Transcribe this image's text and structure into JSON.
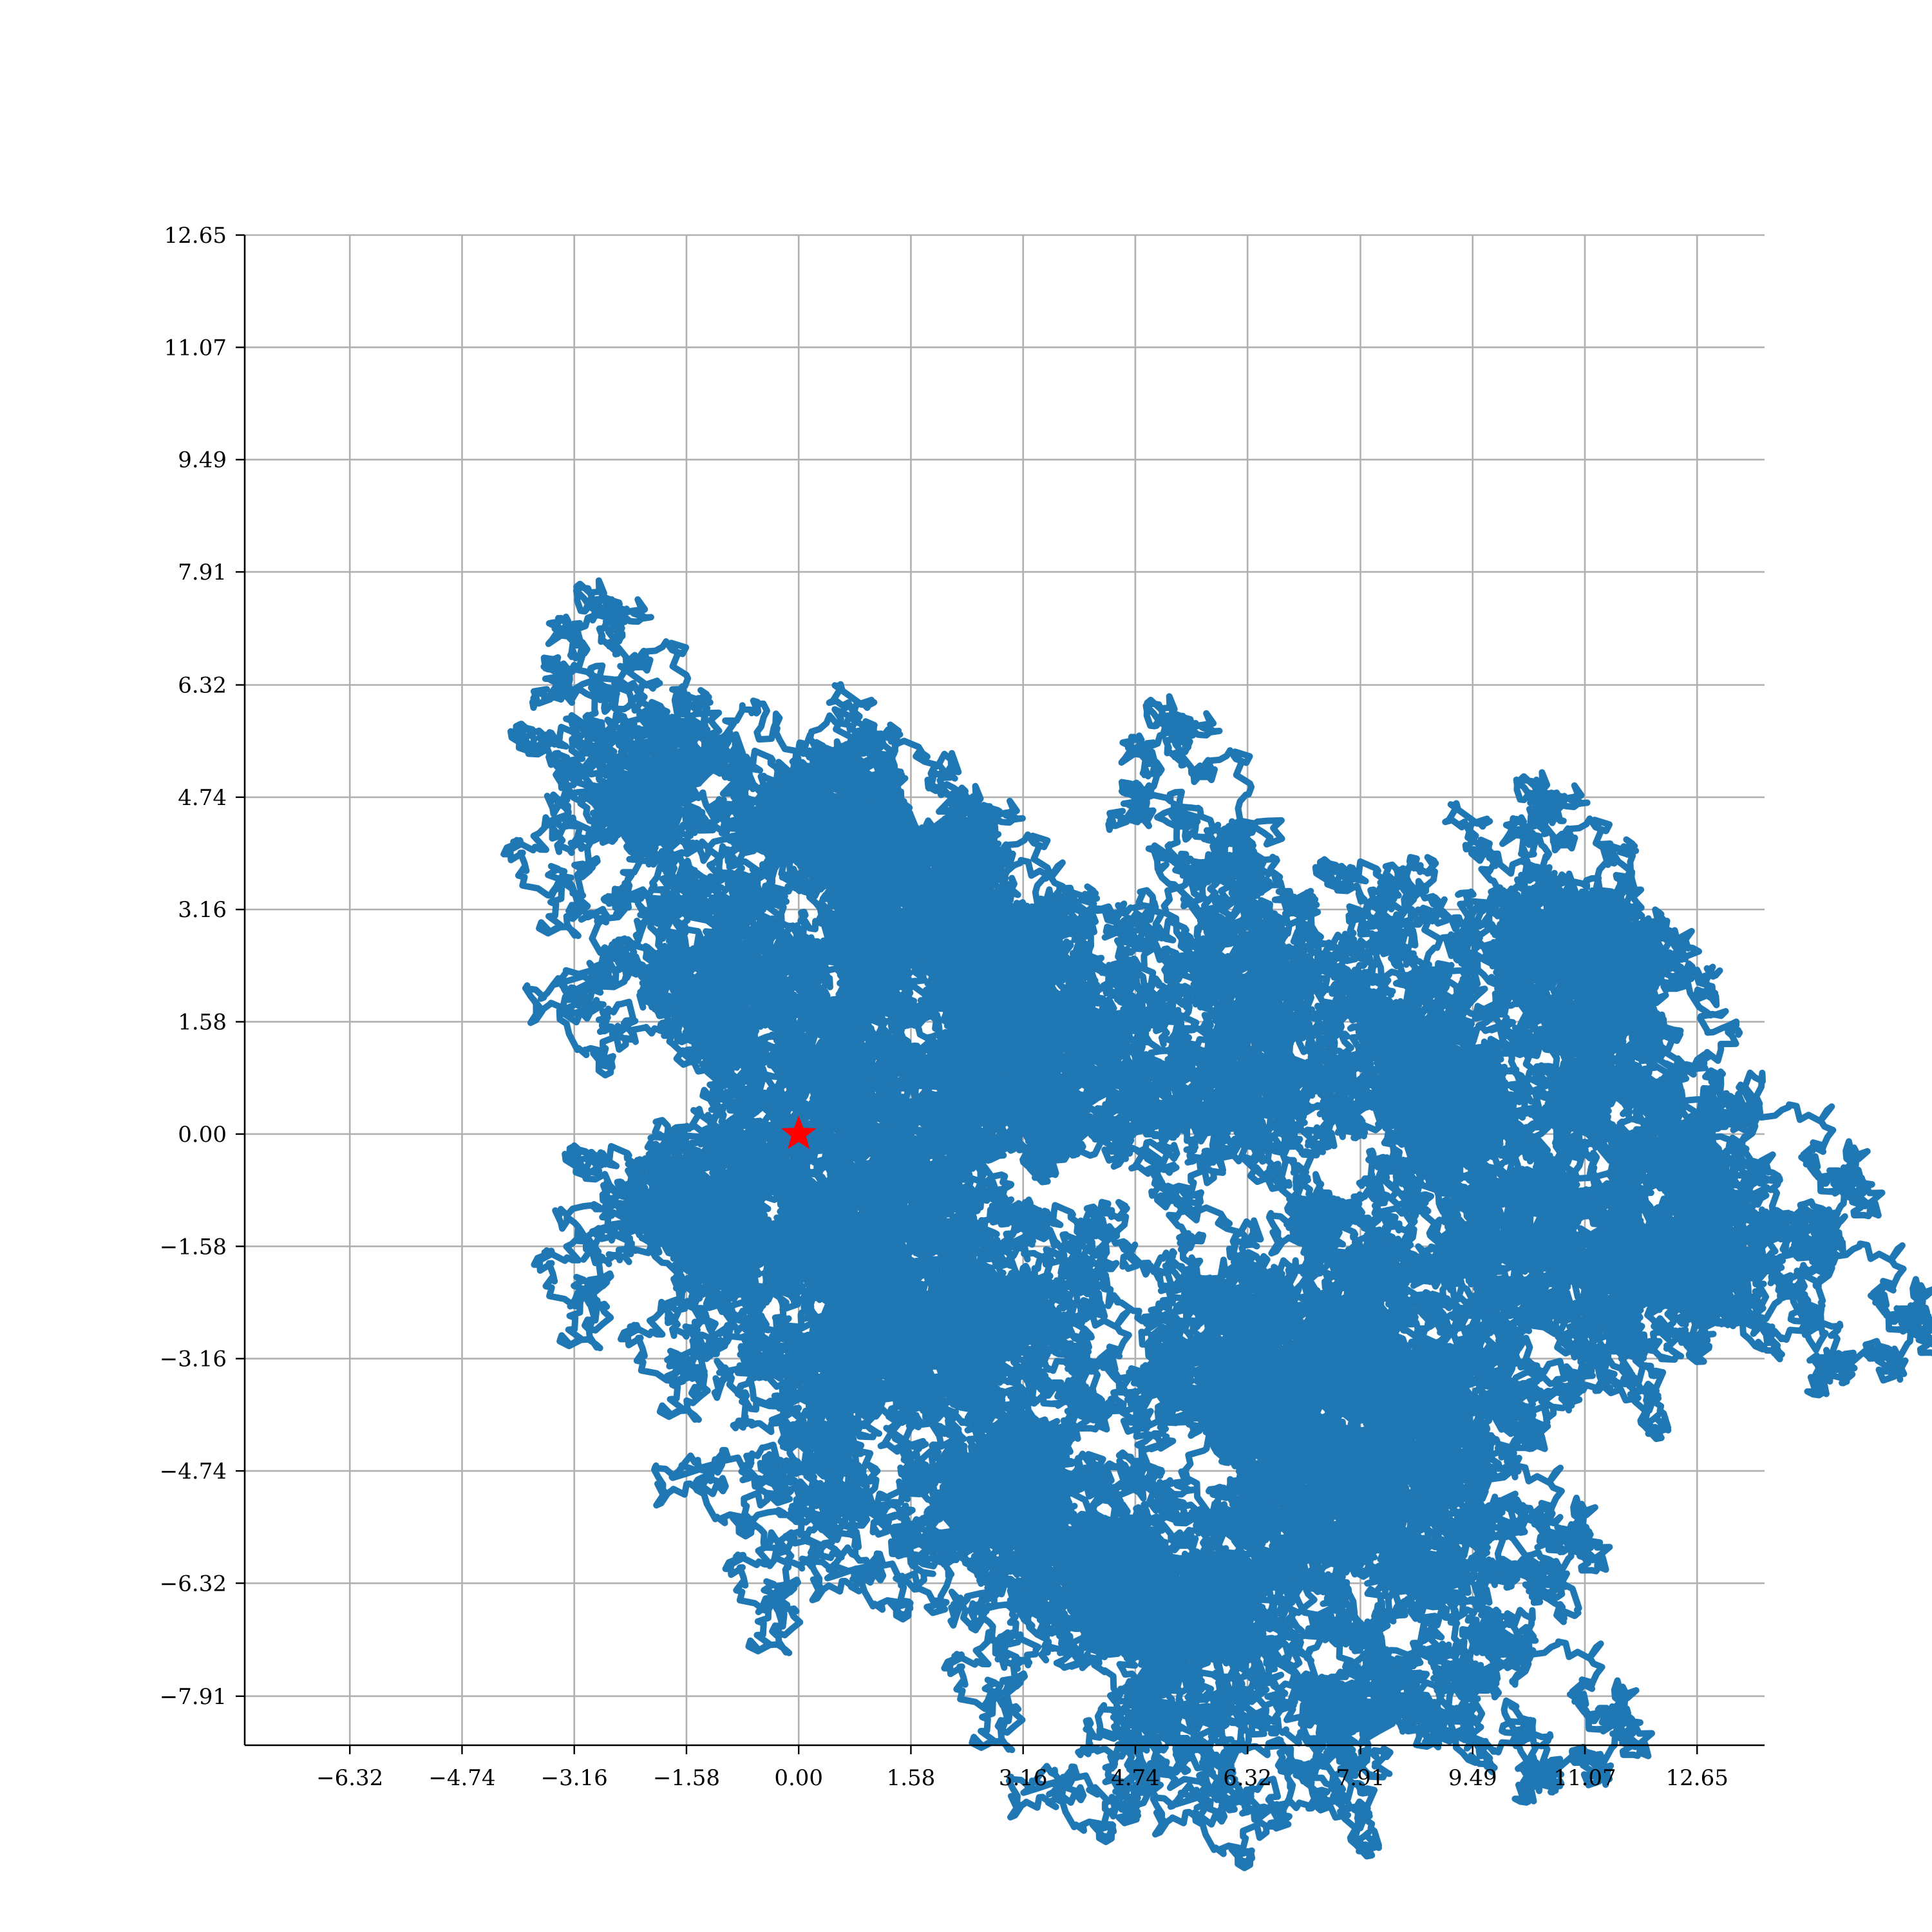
{
  "chart_data": {
    "type": "line",
    "title": "",
    "xlabel": "",
    "ylabel": "",
    "xlim": [
      -7.8,
      13.6
    ],
    "ylim": [
      -8.6,
      12.65
    ],
    "grid": true,
    "x_ticks": [
      "−6.32",
      "−4.74",
      "−3.16",
      "−1.58",
      "0.00",
      "1.58",
      "3.16",
      "4.74",
      "6.32",
      "7.91",
      "9.49",
      "11.07",
      "12.65"
    ],
    "x_tick_values": [
      -6.32,
      -4.74,
      -3.16,
      -1.58,
      0.0,
      1.58,
      3.16,
      4.74,
      6.32,
      7.91,
      9.49,
      11.07,
      12.65
    ],
    "y_ticks": [
      "12.65",
      "11.07",
      "9.49",
      "7.91",
      "6.32",
      "4.74",
      "3.16",
      "1.58",
      "0.00",
      "−1.58",
      "−3.16",
      "−4.74",
      "−6.32",
      "−7.91"
    ],
    "y_tick_values": [
      12.65,
      11.07,
      9.49,
      7.91,
      6.32,
      4.74,
      3.16,
      1.58,
      0.0,
      -1.58,
      -3.16,
      -4.74,
      -6.32,
      -7.91
    ],
    "series": [
      {
        "color": "#1f77b4",
        "points": [
          [
            0.0,
            0.0
          ],
          [
            0.6,
            0.9
          ],
          [
            -0.5,
            1.8
          ],
          [
            -1.5,
            2.6
          ],
          [
            -2.4,
            3.4
          ],
          [
            -2.0,
            4.2
          ],
          [
            -1.0,
            4.4
          ],
          [
            0.0,
            4.8
          ],
          [
            0.6,
            4.5
          ],
          [
            1.3,
            3.8
          ],
          [
            2.0,
            3.3
          ],
          [
            2.6,
            3.0
          ],
          [
            2.3,
            2.2
          ],
          [
            3.0,
            1.7
          ],
          [
            2.5,
            0.9
          ],
          [
            3.3,
            1.5
          ],
          [
            4.2,
            1.3
          ],
          [
            4.6,
            0.5
          ],
          [
            5.5,
            0.9
          ],
          [
            6.0,
            1.8
          ],
          [
            6.8,
            1.6
          ],
          [
            7.7,
            1.7
          ],
          [
            8.3,
            1.2
          ],
          [
            8.9,
            1.5
          ],
          [
            9.5,
            0.9
          ],
          [
            10.2,
            2.0
          ],
          [
            11.0,
            2.2
          ],
          [
            11.7,
            2.7
          ],
          [
            12.3,
            1.0
          ],
          [
            12.2,
            -0.2
          ],
          [
            11.8,
            -1.2
          ],
          [
            13.0,
            -1.2
          ],
          [
            12.0,
            -1.8
          ],
          [
            11.2,
            -1.8
          ],
          [
            10.4,
            -1.6
          ],
          [
            9.8,
            -2.4
          ],
          [
            9.1,
            -3.0
          ],
          [
            8.3,
            -3.2
          ],
          [
            7.9,
            -2.5
          ],
          [
            7.1,
            -2.9
          ],
          [
            6.4,
            -2.8
          ],
          [
            6.1,
            -3.7
          ],
          [
            6.6,
            -4.5
          ],
          [
            7.5,
            -4.4
          ],
          [
            8.0,
            -4.7
          ],
          [
            8.8,
            -5.6
          ],
          [
            7.9,
            -6.0
          ],
          [
            7.8,
            -6.8
          ],
          [
            7.2,
            -7.9
          ],
          [
            6.3,
            -7.2
          ],
          [
            5.4,
            -7.3
          ],
          [
            5.5,
            -6.5
          ],
          [
            4.5,
            -6.8
          ],
          [
            3.6,
            -6.2
          ],
          [
            2.7,
            -5.6
          ],
          [
            3.1,
            -4.9
          ],
          [
            2.1,
            -4.3
          ],
          [
            2.4,
            -3.3
          ],
          [
            1.8,
            -2.7
          ],
          [
            2.6,
            -2.0
          ],
          [
            1.3,
            -1.5
          ],
          [
            0.9,
            -2.0
          ],
          [
            0.2,
            -2.6
          ],
          [
            -0.1,
            -3.1
          ],
          [
            -0.6,
            -2.4
          ],
          [
            -0.7,
            -1.7
          ],
          [
            -0.3,
            -1.0
          ],
          [
            0.3,
            -0.4
          ],
          [
            0.0,
            0.0
          ]
        ]
      }
    ],
    "annotations": [
      {
        "marker": "star",
        "x": 0.0,
        "y": 0.0,
        "color": "#ff0000"
      }
    ]
  }
}
